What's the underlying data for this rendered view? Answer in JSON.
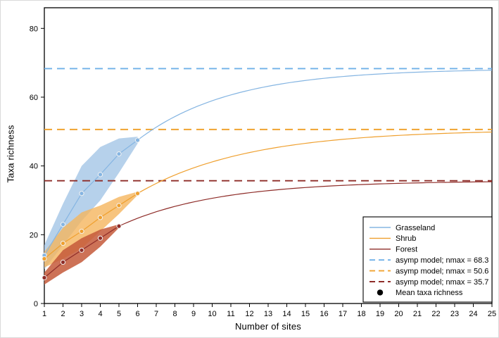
{
  "figure": {
    "xlabel": "Number of sites",
    "ylabel": "Taxa richness"
  },
  "chart_data": {
    "type": "line",
    "title": "",
    "xlabel": "Number of sites",
    "ylabel": "Taxa richness",
    "xlim": [
      1,
      25
    ],
    "ylim": [
      0,
      86
    ],
    "x_ticks": [
      1,
      2,
      3,
      4,
      5,
      6,
      7,
      8,
      9,
      10,
      11,
      12,
      13,
      14,
      15,
      16,
      17,
      18,
      19,
      20,
      21,
      22,
      23,
      24,
      25
    ],
    "y_ticks": [
      0,
      20,
      40,
      60,
      80
    ],
    "grid": false,
    "legend_position": "bottom-right",
    "series": [
      {
        "name": "Grasseland",
        "line_color": "#85b5e2",
        "dash_color": "#6fb0e8",
        "band_color": "#a9c9e8",
        "band_opacity": 0.85,
        "sites": [
          1,
          2,
          3,
          4,
          5,
          6
        ],
        "mean_richness": [
          14,
          23,
          32,
          37.5,
          43.5,
          47.5
        ],
        "band_upper": [
          17,
          29,
          40,
          45.5,
          48,
          48.5
        ],
        "band_lower": [
          10,
          17,
          24,
          30,
          38,
          46.5
        ],
        "asymptote_nmax": 68.3,
        "model_k": 0.2
      },
      {
        "name": "Shrub",
        "line_color": "#efa02f",
        "dash_color": "#f0a330",
        "band_color": "#f5b55e",
        "band_opacity": 0.8,
        "sites": [
          1,
          2,
          3,
          4,
          5,
          6
        ],
        "mean_richness": [
          13,
          17.5,
          21,
          25,
          28.5,
          32
        ],
        "band_upper": [
          15,
          22,
          26.5,
          28.5,
          31,
          32.5
        ],
        "band_lower": [
          10.5,
          13,
          16,
          21,
          26,
          31.5
        ],
        "asymptote_nmax": 50.6,
        "model_k": 0.17
      },
      {
        "name": "Forest",
        "line_color": "#8e2c28",
        "dash_color": "#8e2c28",
        "band_color": "#c4593a",
        "band_opacity": 0.85,
        "sites": [
          1,
          2,
          3,
          4,
          5
        ],
        "mean_richness": [
          7.5,
          12,
          15.5,
          19,
          22.5
        ],
        "band_upper": [
          9,
          15.5,
          19,
          21.5,
          23
        ],
        "band_lower": [
          5.5,
          9,
          12,
          16.5,
          22
        ],
        "asymptote_nmax": 35.7,
        "model_k": 0.19
      }
    ],
    "legend": [
      {
        "label": "Grasseland",
        "style": "solid",
        "color": "#85b5e2"
      },
      {
        "label": "Shrub",
        "style": "solid",
        "color": "#efa02f"
      },
      {
        "label": "Forest",
        "style": "solid",
        "color": "#8e2c28"
      },
      {
        "label": "asymp model; nmax = 68.3",
        "style": "dash",
        "color": "#6fb0e8"
      },
      {
        "label": "asymp model; nmax = 50.6",
        "style": "dash",
        "color": "#f0a330"
      },
      {
        "label": "asymp model; nmax = 35.7",
        "style": "dash",
        "color": "#8e2c28"
      },
      {
        "label": "Mean taxa richness",
        "style": "dot",
        "color": "#000000"
      }
    ]
  }
}
